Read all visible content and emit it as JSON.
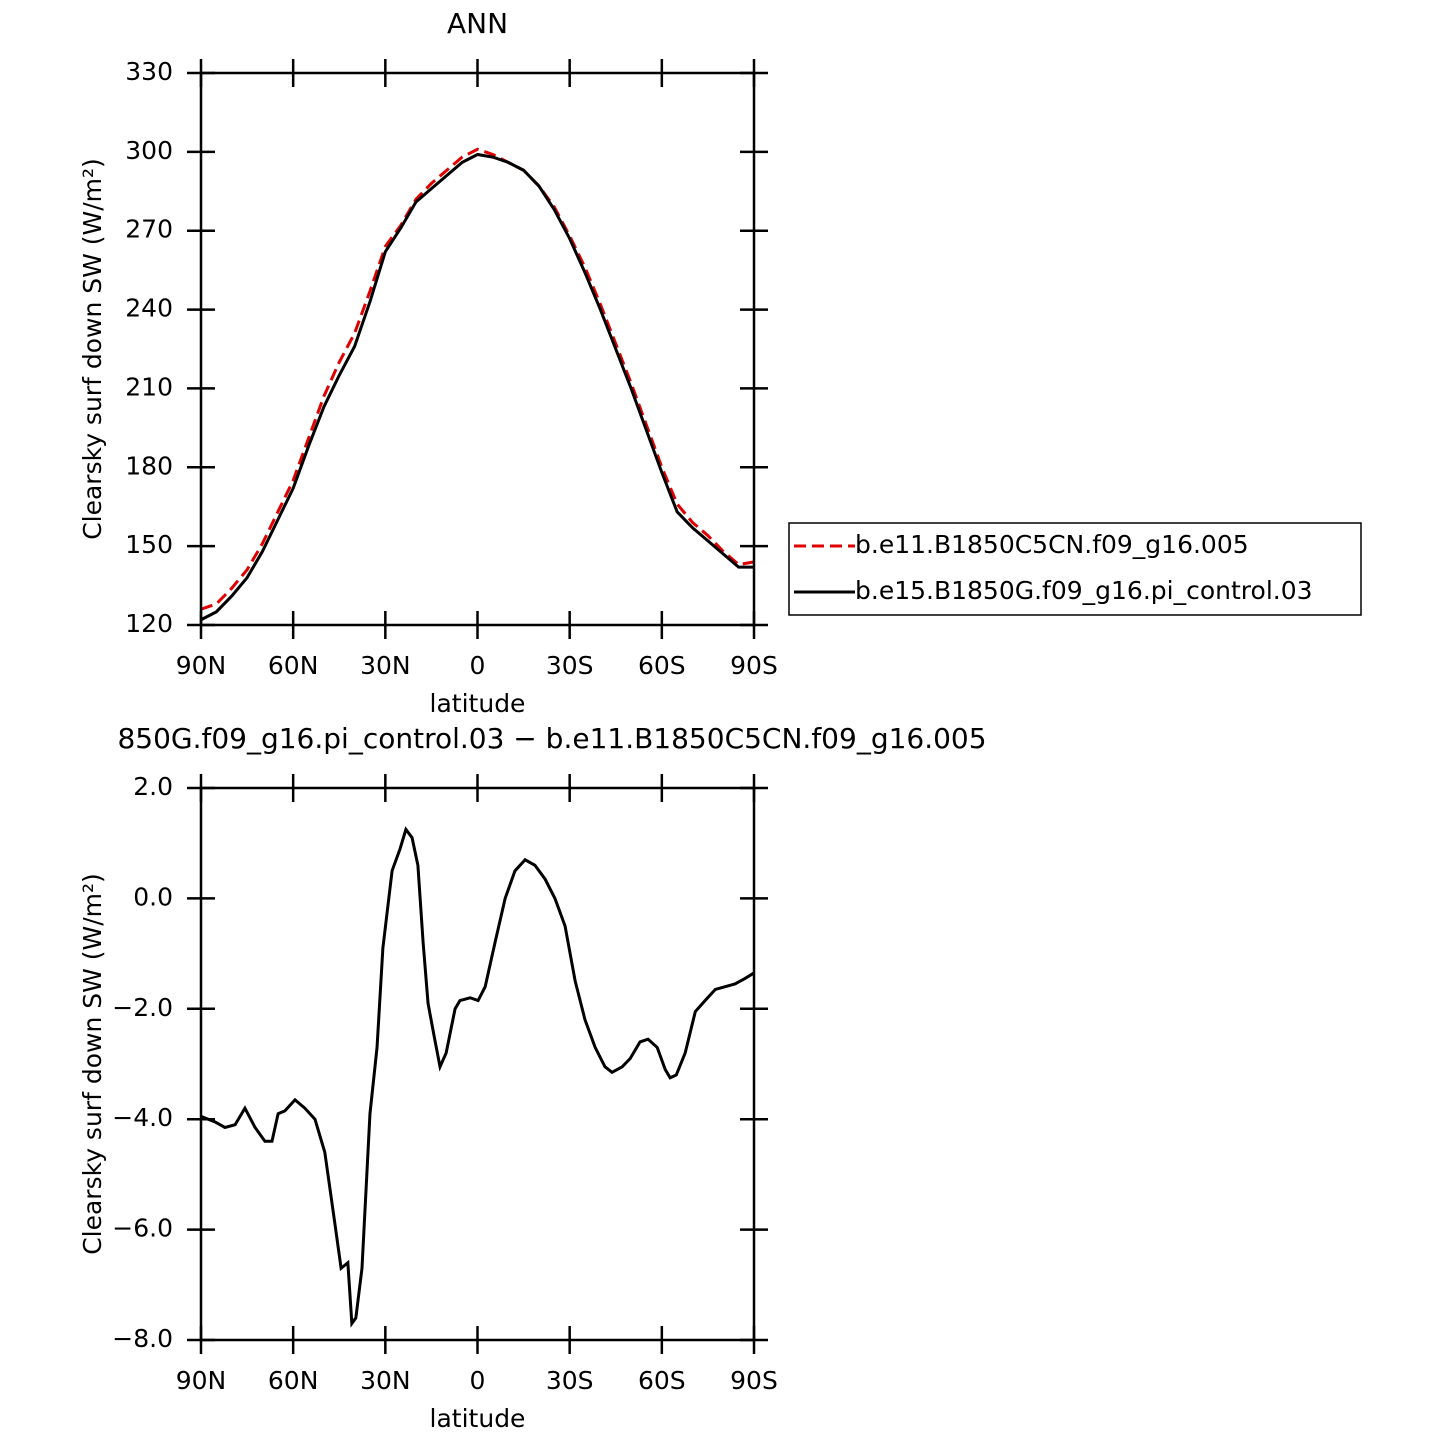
{
  "chart_data": [
    {
      "type": "line",
      "title": "ANN",
      "xlabel": "latitude",
      "ylabel": "Clearsky surf down SW (W/m²)",
      "x": [
        90,
        85,
        80,
        75,
        70,
        65,
        60,
        55,
        50,
        45,
        40,
        35,
        30,
        25,
        20,
        15,
        10,
        5,
        0,
        -5,
        -10,
        -15,
        -20,
        -25,
        -30,
        -35,
        -40,
        -45,
        -50,
        -55,
        -60,
        -65,
        -70,
        -75,
        -80,
        -85,
        -90
      ],
      "series": [
        {
          "name": "b.e11.B1850C5CN.f09_g16.005",
          "color": "#e00000",
          "style": "dashed",
          "values": [
            126,
            128,
            134,
            141,
            151,
            163,
            175,
            191,
            207,
            220,
            231,
            247,
            264,
            272,
            282,
            288,
            293,
            298,
            301,
            299,
            296,
            293,
            287,
            279,
            268,
            256,
            242,
            227,
            212,
            196,
            180,
            166,
            159,
            154,
            148,
            143,
            144
          ]
        },
        {
          "name": "b.e15.B1850G.f09_g16.pi_control.03",
          "color": "#000000",
          "style": "solid",
          "values": [
            122,
            125,
            131,
            138,
            148,
            160,
            172,
            188,
            203,
            215,
            226,
            243,
            262,
            271,
            281,
            286,
            291,
            296,
            299,
            298,
            296,
            293,
            287,
            278,
            267,
            254,
            240,
            225,
            210,
            194,
            178,
            163,
            157,
            152,
            147,
            142,
            142
          ]
        }
      ],
      "xlim": [
        90,
        -90
      ],
      "xticks": [
        {
          "value": 90,
          "label": "90N"
        },
        {
          "value": 60,
          "label": "60N"
        },
        {
          "value": 30,
          "label": "30N"
        },
        0,
        {
          "value": -30,
          "label": "30S"
        },
        {
          "value": -60,
          "label": "60S"
        },
        {
          "value": -90,
          "label": "90S"
        }
      ],
      "ylim": [
        120,
        330
      ],
      "yticks": [
        120,
        150,
        180,
        210,
        240,
        270,
        300,
        330
      ],
      "legend": "right"
    },
    {
      "type": "line",
      "title": "850G.f09_g16.pi_control.03 − b.e11.B1850C5CN.f09_g16.005",
      "xlabel": "latitude",
      "ylabel": "Clearsky surf down SW (W/m²)",
      "x": [
        90,
        85.4,
        82.2,
        78.9,
        75.7,
        72.4,
        69.2,
        66.9,
        64.9,
        62.7,
        59.4,
        56.2,
        52.9,
        49.7,
        46.4,
        44.4,
        42.2,
        40.9,
        39.6,
        37.6,
        35.0,
        32.7,
        30.8,
        27.8,
        25.2,
        23.3,
        21.3,
        19.4,
        17.7,
        16.1,
        14.1,
        12.2,
        10.2,
        7.3,
        5.7,
        2.4,
        -0.2,
        -2.5,
        -5.7,
        -9.0,
        -12.2,
        -15.5,
        -18.7,
        -22.0,
        -25.2,
        -28.5,
        -31.8,
        -35.0,
        -38.3,
        -41.5,
        -43.8,
        -47.1,
        -49.7,
        -52.9,
        -55.5,
        -58.5,
        -61.1,
        -62.7,
        -64.7,
        -67.6,
        -70.9,
        -74.1,
        -77.4,
        -80.6,
        -83.8,
        -87.1,
        -90
      ],
      "series": [
        {
          "color": "#000000",
          "style": "solid",
          "values": [
            -3.95,
            -4.05,
            -4.15,
            -4.1,
            -3.8,
            -4.15,
            -4.4,
            -4.4,
            -3.9,
            -3.85,
            -3.65,
            -3.8,
            -4.0,
            -4.6,
            -5.9,
            -6.7,
            -6.6,
            -7.7,
            -7.6,
            -6.7,
            -3.9,
            -2.7,
            -0.9,
            0.5,
            0.9,
            1.25,
            1.1,
            0.6,
            -0.8,
            -1.9,
            -2.5,
            -3.05,
            -2.8,
            -2.0,
            -1.85,
            -1.8,
            -1.85,
            -1.6,
            -0.8,
            0.0,
            0.5,
            0.7,
            0.6,
            0.35,
            0.0,
            -0.5,
            -1.5,
            -2.2,
            -2.7,
            -3.05,
            -3.15,
            -3.05,
            -2.9,
            -2.6,
            -2.55,
            -2.7,
            -3.1,
            -3.25,
            -3.2,
            -2.8,
            -2.05,
            -1.85,
            -1.65,
            -1.6,
            -1.55,
            -1.45,
            -1.35
          ]
        }
      ],
      "xlim": [
        90,
        -90
      ],
      "xticks": [
        {
          "value": 90,
          "label": "90N"
        },
        {
          "value": 60,
          "label": "60N"
        },
        {
          "value": 30,
          "label": "30N"
        },
        0,
        {
          "value": -30,
          "label": "30S"
        },
        {
          "value": -60,
          "label": "60S"
        },
        {
          "value": -90,
          "label": "90S"
        }
      ],
      "ylim": [
        -8,
        2
      ],
      "yticks": [
        {
          "value": 2,
          "label": "2.0"
        },
        {
          "value": 0,
          "label": "0.0"
        },
        {
          "value": -2,
          "label": "−2.0"
        },
        {
          "value": -4,
          "label": "−4.0"
        },
        {
          "value": -6,
          "label": "−6.0"
        },
        {
          "value": -8,
          "label": "−8.0"
        }
      ]
    }
  ]
}
